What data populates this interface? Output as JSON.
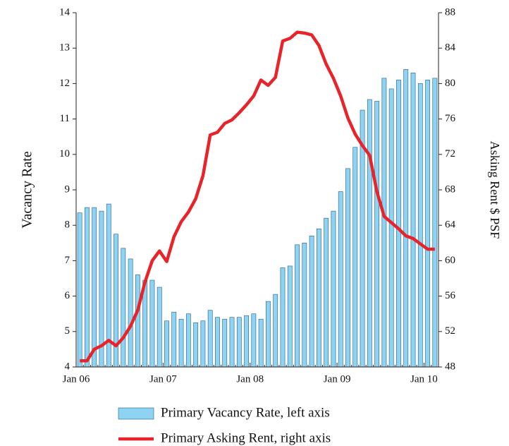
{
  "chart_data": {
    "type": "bar-line",
    "y_label": "Vacancy Rate",
    "y2_label": "Asking Rent $ PSF",
    "categories": [
      "Jan 06",
      null,
      null,
      null,
      null,
      null,
      null,
      null,
      null,
      null,
      null,
      null,
      "Jan 07",
      null,
      null,
      null,
      null,
      null,
      null,
      null,
      null,
      null,
      null,
      null,
      "Jan 08",
      null,
      null,
      null,
      null,
      null,
      null,
      null,
      null,
      null,
      null,
      null,
      "Jan 09",
      null,
      null,
      null,
      null,
      null,
      null,
      null,
      null,
      null,
      null,
      null,
      "Jan 10",
      null
    ],
    "series": [
      {
        "name": "Primary Vacancy Rate, left axis",
        "type": "bar",
        "color": "#8fd3f2",
        "axis": "y",
        "values": [
          8.35,
          8.5,
          8.5,
          8.4,
          8.6,
          7.75,
          7.35,
          7.05,
          6.6,
          6.45,
          6.45,
          6.25,
          5.3,
          5.55,
          5.35,
          5.5,
          5.25,
          5.3,
          5.6,
          5.4,
          5.35,
          5.4,
          5.4,
          5.45,
          5.5,
          5.35,
          5.85,
          6.05,
          6.8,
          6.85,
          7.45,
          7.5,
          7.7,
          7.9,
          8.2,
          8.4,
          8.95,
          9.6,
          10.2,
          11.25,
          11.55,
          11.5,
          12.15,
          11.85,
          12.1,
          12.4,
          12.3,
          12.0,
          12.1,
          12.15
        ]
      },
      {
        "name": "Primary Asking Rent, right axis",
        "type": "line",
        "color": "#e8242a",
        "axis": "y2",
        "values": [
          48.7,
          48.7,
          50.0,
          50.4,
          51.0,
          50.4,
          51.3,
          52.6,
          54.4,
          57.6,
          60.0,
          61.1,
          59.9,
          62.7,
          64.4,
          65.5,
          67.0,
          69.6,
          74.2,
          74.5,
          75.5,
          75.9,
          76.7,
          77.6,
          78.6,
          80.4,
          79.8,
          80.7,
          84.8,
          85.1,
          85.8,
          85.7,
          85.5,
          84.3,
          82.2,
          80.6,
          78.6,
          76.1,
          74.3,
          73.0,
          71.9,
          67.8,
          65.0,
          64.3,
          63.6,
          62.8,
          62.5,
          61.9,
          61.3,
          61.3
        ]
      }
    ],
    "ylim": [
      4,
      14
    ],
    "yticks": [
      4,
      5,
      6,
      7,
      8,
      9,
      10,
      11,
      12,
      13,
      14
    ],
    "y2lim": [
      48,
      88
    ],
    "y2ticks": [
      48,
      52,
      56,
      60,
      64,
      68,
      72,
      76,
      80,
      84,
      88
    ],
    "grid": false,
    "legend": "bottom"
  }
}
